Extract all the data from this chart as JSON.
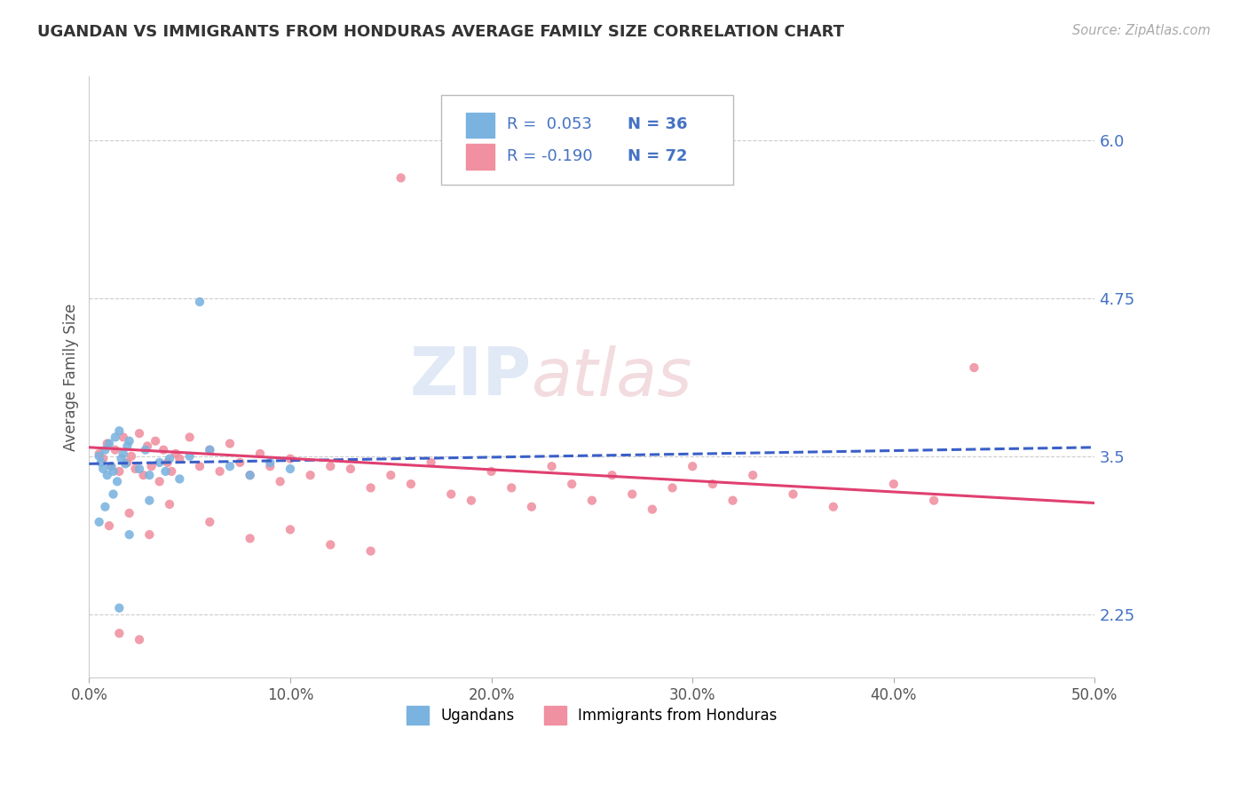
{
  "title": "UGANDAN VS IMMIGRANTS FROM HONDURAS AVERAGE FAMILY SIZE CORRELATION CHART",
  "source_text": "Source: ZipAtlas.com",
  "ylabel": "Average Family Size",
  "xlim": [
    0.0,
    0.5
  ],
  "ylim": [
    1.75,
    6.5
  ],
  "yticks": [
    2.25,
    3.5,
    4.75,
    6.0
  ],
  "xticks": [
    0.0,
    0.1,
    0.2,
    0.3,
    0.4,
    0.5
  ],
  "xticklabels": [
    "0.0%",
    "10.0%",
    "20.0%",
    "30.0%",
    "40.0%",
    "50.0%"
  ],
  "ugandan_color": "#7ab3e0",
  "honduras_color": "#f090a0",
  "trend_blue_color": "#3a5fc8",
  "trend_pink_color": "#e04070",
  "watermark_text": "ZIP",
  "watermark_text2": "atlas",
  "legend_r1": "R =  0.053",
  "legend_n1": "N = 36",
  "legend_r2": "R = -0.190",
  "legend_n2": "N = 72",
  "ugandan_label": "Ugandans",
  "honduras_label": "Immigrants from Honduras",
  "background_color": "#ffffff",
  "grid_color": "#cccccc",
  "title_color": "#333333",
  "axis_label_color": "#4472c4",
  "blue_line_x": [
    0.0,
    0.5
  ],
  "blue_line_y": [
    3.44,
    3.57
  ],
  "pink_line_x": [
    0.0,
    0.5
  ],
  "pink_line_y": [
    3.57,
    3.13
  ],
  "ugandan_points_x": [
    0.005,
    0.006,
    0.007,
    0.008,
    0.009,
    0.01,
    0.011,
    0.012,
    0.013,
    0.014,
    0.015,
    0.016,
    0.017,
    0.018,
    0.019,
    0.02,
    0.025,
    0.028,
    0.03,
    0.035,
    0.038,
    0.04,
    0.045,
    0.05,
    0.055,
    0.06,
    0.07,
    0.08,
    0.09,
    0.1,
    0.005,
    0.008,
    0.012,
    0.02,
    0.03,
    0.015
  ],
  "ugandan_points_y": [
    3.5,
    3.45,
    3.4,
    3.55,
    3.35,
    3.6,
    3.42,
    3.38,
    3.65,
    3.3,
    3.7,
    3.48,
    3.52,
    3.44,
    3.58,
    3.62,
    3.4,
    3.55,
    3.35,
    3.45,
    3.38,
    3.48,
    3.32,
    3.5,
    4.72,
    3.55,
    3.42,
    3.35,
    3.45,
    3.4,
    2.98,
    3.1,
    3.2,
    2.88,
    3.15,
    2.3
  ],
  "honduras_points_x": [
    0.005,
    0.007,
    0.009,
    0.011,
    0.013,
    0.015,
    0.017,
    0.019,
    0.021,
    0.023,
    0.025,
    0.027,
    0.029,
    0.031,
    0.033,
    0.035,
    0.037,
    0.039,
    0.041,
    0.043,
    0.045,
    0.05,
    0.055,
    0.06,
    0.065,
    0.07,
    0.075,
    0.08,
    0.085,
    0.09,
    0.095,
    0.1,
    0.11,
    0.12,
    0.13,
    0.14,
    0.15,
    0.155,
    0.16,
    0.17,
    0.18,
    0.19,
    0.2,
    0.21,
    0.22,
    0.23,
    0.24,
    0.25,
    0.26,
    0.27,
    0.28,
    0.29,
    0.3,
    0.31,
    0.32,
    0.33,
    0.35,
    0.37,
    0.4,
    0.42,
    0.01,
    0.02,
    0.03,
    0.04,
    0.06,
    0.08,
    0.1,
    0.12,
    0.14,
    0.44,
    0.015,
    0.025
  ],
  "honduras_points_y": [
    3.52,
    3.48,
    3.6,
    3.42,
    3.55,
    3.38,
    3.65,
    3.45,
    3.5,
    3.4,
    3.68,
    3.35,
    3.58,
    3.42,
    3.62,
    3.3,
    3.55,
    3.45,
    3.38,
    3.52,
    3.48,
    3.65,
    3.42,
    3.55,
    3.38,
    3.6,
    3.45,
    3.35,
    3.52,
    3.42,
    3.3,
    3.48,
    3.35,
    3.42,
    3.4,
    3.25,
    3.35,
    5.7,
    3.28,
    3.45,
    3.2,
    3.15,
    3.38,
    3.25,
    3.1,
    3.42,
    3.28,
    3.15,
    3.35,
    3.2,
    3.08,
    3.25,
    3.42,
    3.28,
    3.15,
    3.35,
    3.2,
    3.1,
    3.28,
    3.15,
    2.95,
    3.05,
    2.88,
    3.12,
    2.98,
    2.85,
    2.92,
    2.8,
    2.75,
    4.2,
    2.1,
    2.05
  ]
}
